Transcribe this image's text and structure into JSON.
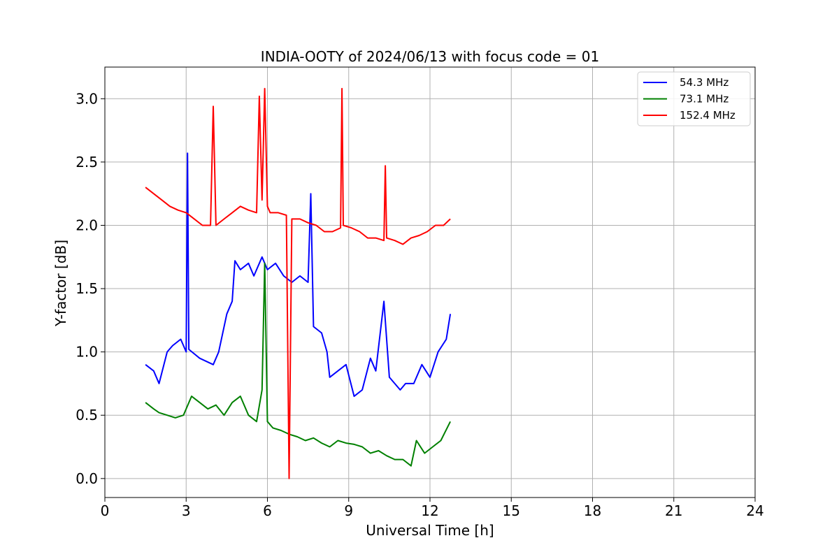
{
  "chart_data": {
    "type": "line",
    "title": "INDIA-OOTY of 2024/06/13 with focus code = 01",
    "xlabel": "Universal Time [h]",
    "ylabel": "Y-factor [dB]",
    "xlim": [
      0,
      24
    ],
    "ylim": [
      -0.15,
      3.25
    ],
    "xticks": [
      0,
      3,
      6,
      9,
      12,
      15,
      18,
      21,
      24
    ],
    "xtick_labels": [
      "0",
      "3",
      "6",
      "9",
      "12",
      "15",
      "18",
      "21",
      "24"
    ],
    "yticks": [
      0.0,
      0.5,
      1.0,
      1.5,
      2.0,
      2.5,
      3.0
    ],
    "ytick_labels": [
      "0.0",
      "0.5",
      "1.0",
      "1.5",
      "2.0",
      "2.5",
      "3.0"
    ],
    "grid": true,
    "legend_position": "top-right",
    "series": [
      {
        "name": "54.3 MHz",
        "color": "#0000ff",
        "x": [
          1.5,
          1.8,
          2.0,
          2.3,
          2.5,
          2.8,
          3.0,
          3.05,
          3.1,
          3.5,
          4.0,
          4.2,
          4.5,
          4.7,
          4.8,
          5.0,
          5.3,
          5.5,
          5.8,
          6.0,
          6.3,
          6.6,
          6.9,
          7.2,
          7.5,
          7.6,
          7.7,
          8.0,
          8.2,
          8.3,
          8.6,
          8.9,
          9.2,
          9.5,
          9.8,
          10.0,
          10.3,
          10.5,
          10.7,
          10.9,
          11.1,
          11.4,
          11.7,
          12.0,
          12.3,
          12.6,
          12.75
        ],
        "y": [
          0.9,
          0.85,
          0.75,
          1.0,
          1.05,
          1.1,
          1.0,
          2.57,
          1.02,
          0.95,
          0.9,
          1.0,
          1.3,
          1.4,
          1.72,
          1.65,
          1.7,
          1.6,
          1.75,
          1.65,
          1.7,
          1.6,
          1.55,
          1.6,
          1.55,
          2.25,
          1.2,
          1.15,
          1.0,
          0.8,
          0.85,
          0.9,
          0.65,
          0.7,
          0.95,
          0.85,
          1.4,
          0.8,
          0.75,
          0.7,
          0.75,
          0.75,
          0.9,
          0.8,
          1.0,
          1.1,
          1.3
        ]
      },
      {
        "name": "73.1 MHz",
        "color": "#008000",
        "x": [
          1.5,
          1.8,
          2.0,
          2.3,
          2.6,
          2.9,
          3.2,
          3.5,
          3.8,
          4.1,
          4.4,
          4.7,
          5.0,
          5.3,
          5.6,
          5.8,
          5.9,
          6.0,
          6.2,
          6.5,
          6.8,
          7.1,
          7.4,
          7.7,
          8.0,
          8.3,
          8.6,
          8.9,
          9.2,
          9.5,
          9.8,
          10.1,
          10.4,
          10.7,
          11.0,
          11.3,
          11.5,
          11.8,
          12.1,
          12.4,
          12.75
        ],
        "y": [
          0.6,
          0.55,
          0.52,
          0.5,
          0.48,
          0.5,
          0.65,
          0.6,
          0.55,
          0.58,
          0.5,
          0.6,
          0.65,
          0.5,
          0.45,
          0.7,
          1.7,
          0.45,
          0.4,
          0.38,
          0.35,
          0.33,
          0.3,
          0.32,
          0.28,
          0.25,
          0.3,
          0.28,
          0.27,
          0.25,
          0.2,
          0.22,
          0.18,
          0.15,
          0.15,
          0.1,
          0.3,
          0.2,
          0.25,
          0.3,
          0.45
        ]
      },
      {
        "name": "152.4 MHz",
        "color": "#ff0000",
        "x": [
          1.5,
          1.8,
          2.1,
          2.4,
          2.7,
          3.0,
          3.3,
          3.6,
          3.9,
          4.0,
          4.1,
          4.4,
          4.7,
          5.0,
          5.3,
          5.6,
          5.7,
          5.8,
          5.9,
          6.0,
          6.1,
          6.4,
          6.7,
          6.8,
          6.9,
          7.2,
          7.5,
          7.8,
          8.1,
          8.4,
          8.7,
          8.75,
          8.8,
          9.1,
          9.4,
          9.7,
          10.0,
          10.3,
          10.35,
          10.4,
          10.7,
          11.0,
          11.3,
          11.6,
          11.9,
          12.2,
          12.5,
          12.75
        ],
        "y": [
          2.3,
          2.25,
          2.2,
          2.15,
          2.12,
          2.1,
          2.05,
          2.0,
          2.0,
          2.94,
          2.0,
          2.05,
          2.1,
          2.15,
          2.12,
          2.1,
          3.02,
          2.2,
          3.08,
          2.15,
          2.1,
          2.1,
          2.08,
          0.0,
          2.05,
          2.05,
          2.02,
          2.0,
          1.95,
          1.95,
          1.98,
          3.08,
          2.0,
          1.98,
          1.95,
          1.9,
          1.9,
          1.88,
          2.47,
          1.9,
          1.88,
          1.85,
          1.9,
          1.92,
          1.95,
          2.0,
          2.0,
          2.05
        ]
      }
    ]
  }
}
